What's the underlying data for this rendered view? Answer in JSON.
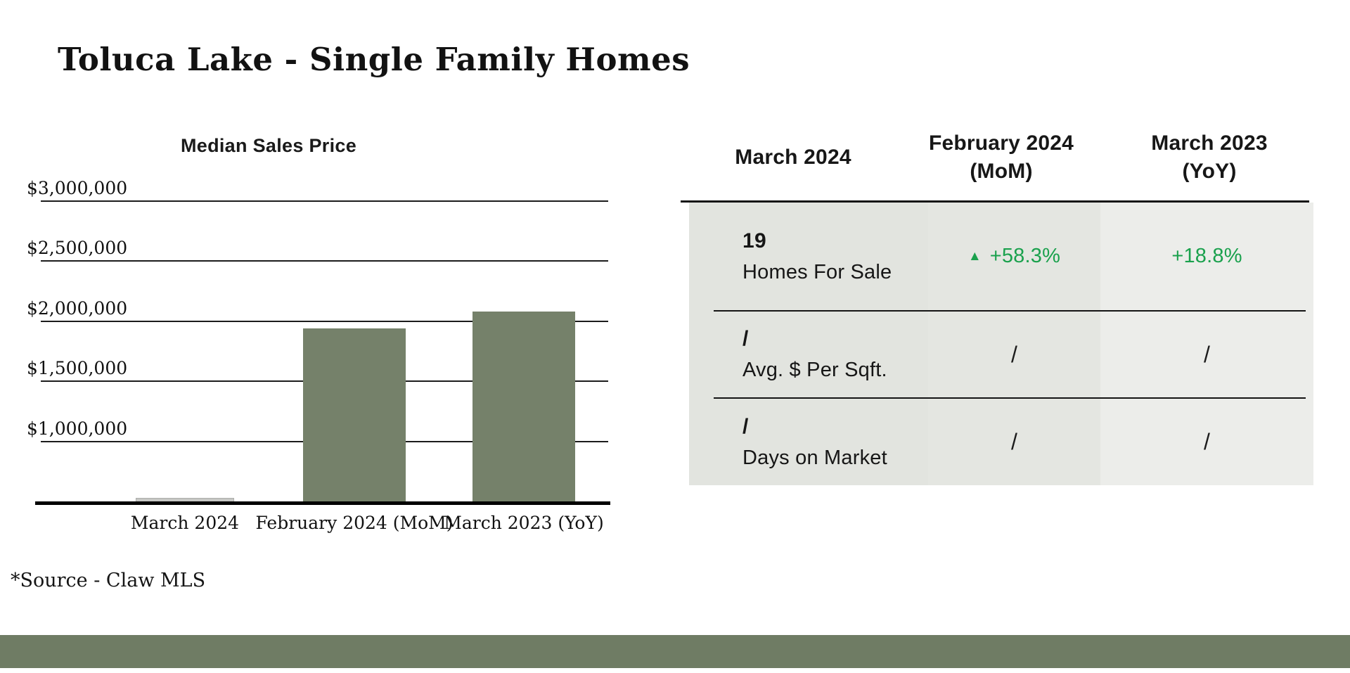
{
  "page": {
    "title": "Toluca Lake - Single Family Homes",
    "source_note": "*Source - Claw MLS"
  },
  "chart_data": {
    "type": "bar",
    "title": "Median Sales Price",
    "categories": [
      "March 2024",
      "February 2024 (MoM)",
      "March 2023 (YoY)"
    ],
    "values": [
      0,
      1940000,
      2080000
    ],
    "bar_colors": [
      "#c6c7c4",
      "#75816a",
      "#75816a"
    ],
    "ylim": [
      500000,
      3000000
    ],
    "yticks": [
      {
        "label": "$3,000,000",
        "value": 3000000
      },
      {
        "label": "$2,500,000",
        "value": 2500000
      },
      {
        "label": "$2,000,000",
        "value": 2000000
      },
      {
        "label": "$1,500,000",
        "value": 1500000
      },
      {
        "label": "$1,000,000",
        "value": 1000000
      }
    ],
    "grid": true,
    "legend": false,
    "xlabel": "",
    "ylabel": ""
  },
  "table": {
    "headers": [
      {
        "line1": "March 2024",
        "line2": ""
      },
      {
        "line1": "February 2024",
        "line2": "(MoM)"
      },
      {
        "line1": "March 2023",
        "line2": "(YoY)"
      }
    ],
    "rows": [
      {
        "value": "19",
        "label": "Homes For Sale",
        "mom_arrow": "▲",
        "mom": "+58.3%",
        "yoy": "+18.8%"
      },
      {
        "value": "/",
        "label": "Avg. $ Per Sqft.",
        "mom_arrow": "",
        "mom": "/",
        "yoy": "/"
      },
      {
        "value": "/",
        "label": "Days on Market",
        "mom_arrow": "",
        "mom": "/",
        "yoy": "/"
      }
    ],
    "colors": {
      "positive": "#1aa14d",
      "col1_bg": "#e2e4df",
      "col2_bg": "#e4e6e1",
      "col3_bg": "#ecedea",
      "banner": "#6f7c64",
      "bar": "#75816a",
      "no_data_bar": "#c6c7c4"
    }
  }
}
